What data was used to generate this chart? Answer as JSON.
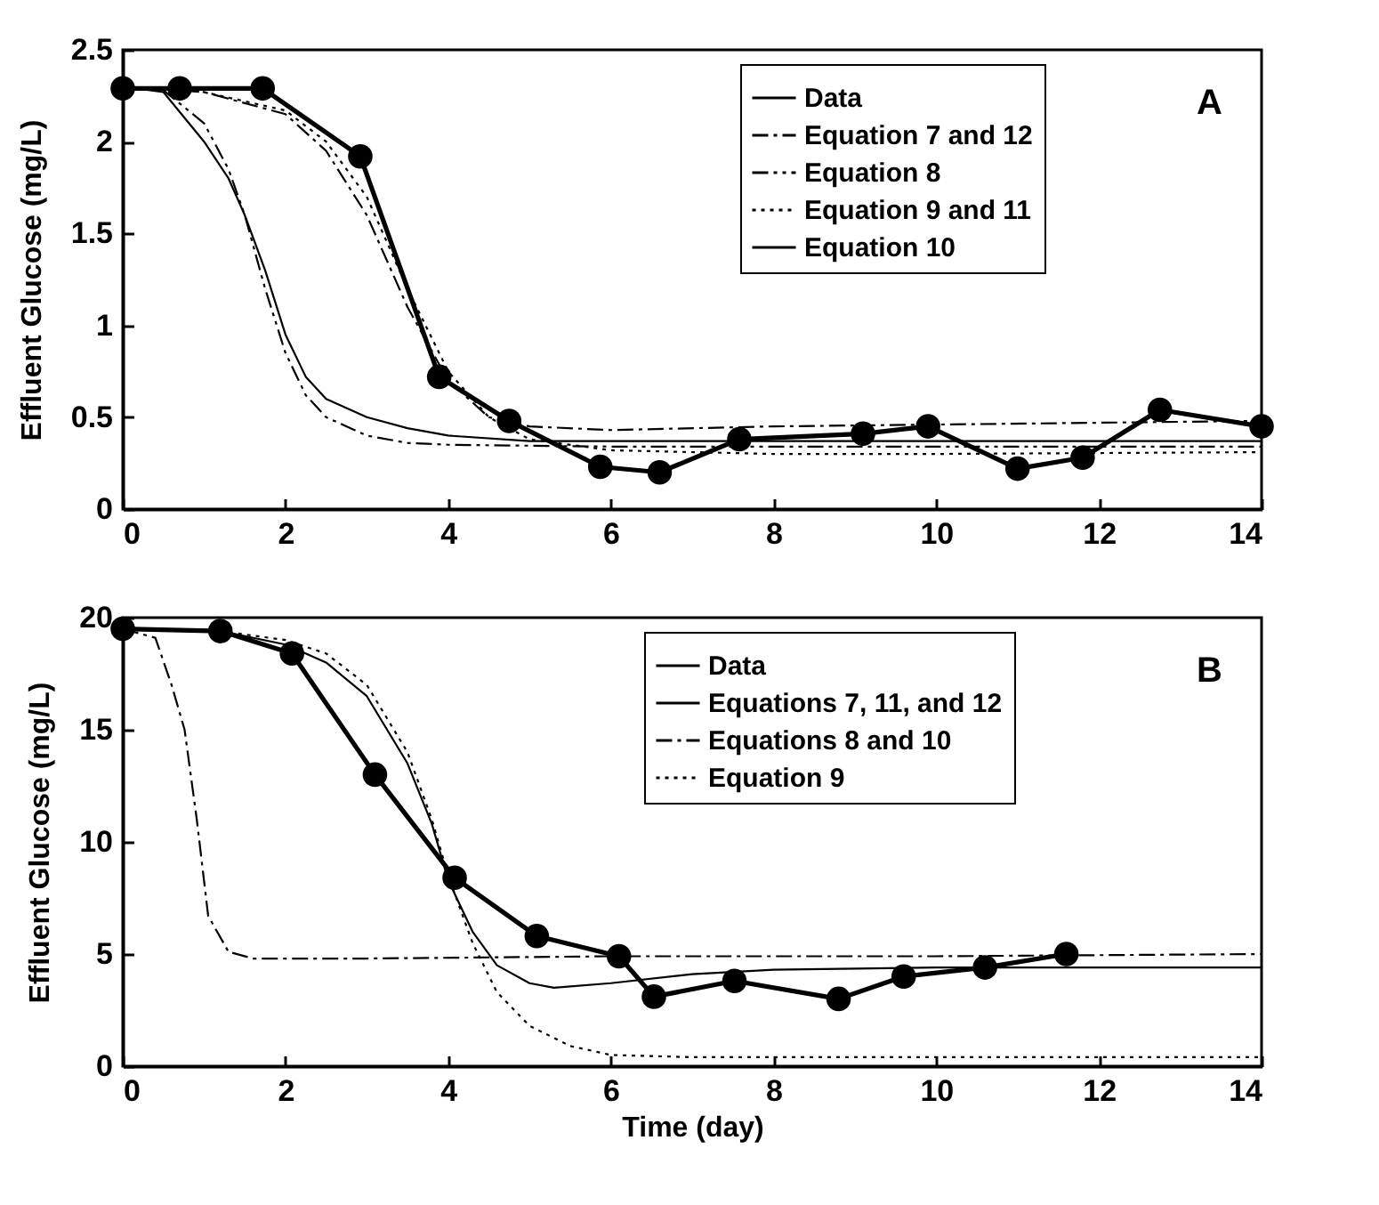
{
  "chart_data": [
    {
      "type": "line",
      "ylabel": "Effluent Glucose (mg/L)",
      "xlim": [
        0,
        14
      ],
      "xticks": [
        0,
        2,
        4,
        6,
        8,
        10,
        12,
        14
      ],
      "ylim": [
        0,
        2.5
      ],
      "yticks": [
        0,
        0.5,
        1,
        1.5,
        2,
        2.5
      ],
      "grid": false,
      "legend": "top right",
      "annotations": [
        "A"
      ],
      "series": [
        {
          "name": "Data",
          "color": "#000000",
          "marker": "circle",
          "line_style": "solid",
          "x": [
            0,
            0.7,
            1.72,
            2.92,
            3.89,
            4.75,
            5.87,
            6.6,
            7.58,
            9.1,
            9.9,
            11.0,
            11.8,
            12.75,
            14
          ],
          "values": [
            2.29,
            2.29,
            2.29,
            1.92,
            0.72,
            0.48,
            0.23,
            0.2,
            0.38,
            0.41,
            0.45,
            0.22,
            0.28,
            0.54,
            0.45
          ]
        },
        {
          "name": "Equation 7 and 12",
          "color": "#000000",
          "marker": "none",
          "line_style": "dashdot",
          "x": [
            0,
            1,
            2,
            2.5,
            3,
            3.5,
            4,
            4.5,
            5,
            6,
            8,
            10,
            12,
            14
          ],
          "values": [
            2.3,
            2.27,
            2.15,
            1.95,
            1.6,
            1.1,
            0.7,
            0.5,
            0.45,
            0.43,
            0.45,
            0.46,
            0.47,
            0.48
          ]
        },
        {
          "name": "Equation  8",
          "color": "#000000",
          "marker": "none",
          "line_style": "dashdotdot",
          "x": [
            0,
            0.5,
            1,
            1.3,
            1.5,
            1.75,
            2,
            2.25,
            2.5,
            3,
            3.5,
            4,
            6,
            14
          ],
          "values": [
            2.3,
            2.28,
            2.1,
            1.85,
            1.6,
            1.2,
            0.85,
            0.62,
            0.5,
            0.4,
            0.36,
            0.35,
            0.34,
            0.34
          ]
        },
        {
          "name": "Equation 9 and 11",
          "color": "#000000",
          "marker": "none",
          "line_style": "dotted",
          "x": [
            0,
            1,
            2,
            2.5,
            3,
            3.5,
            4,
            4.5,
            5,
            6,
            8,
            10,
            14
          ],
          "values": [
            2.3,
            2.27,
            2.17,
            2.0,
            1.7,
            1.2,
            0.75,
            0.5,
            0.38,
            0.32,
            0.3,
            0.3,
            0.31
          ]
        },
        {
          "name": "Equation 10",
          "color": "#000000",
          "marker": "none",
          "line_style": "solid",
          "x": [
            0,
            0.5,
            1,
            1.3,
            1.5,
            1.75,
            2,
            2.25,
            2.5,
            3,
            3.5,
            4,
            5,
            6,
            14
          ],
          "values": [
            2.3,
            2.27,
            2.0,
            1.8,
            1.6,
            1.3,
            0.95,
            0.72,
            0.6,
            0.5,
            0.44,
            0.4,
            0.37,
            0.37,
            0.37
          ]
        }
      ]
    },
    {
      "type": "line",
      "xlabel": "Time (day)",
      "ylabel": "Effluent Glucose (mg/L)",
      "xlim": [
        0,
        14
      ],
      "xticks": [
        0,
        2,
        4,
        6,
        8,
        10,
        12,
        14
      ],
      "ylim": [
        0,
        20
      ],
      "yticks": [
        0,
        5,
        10,
        15,
        20
      ],
      "grid": false,
      "legend": "top right",
      "annotations": [
        "B"
      ],
      "series": [
        {
          "name": "Data",
          "color": "#000000",
          "marker": "circle",
          "line_style": "solid",
          "x": [
            0,
            1.2,
            2.08,
            3.1,
            4.08,
            5.09,
            6.1,
            6.53,
            7.52,
            8.8,
            9.6,
            10.6,
            11.6
          ],
          "values": [
            19.5,
            19.4,
            18.4,
            13.0,
            8.4,
            5.8,
            4.9,
            3.1,
            3.8,
            3.0,
            4.0,
            4.4,
            5.0
          ]
        },
        {
          "name": "Equations 7, 11, and 12",
          "color": "#000000",
          "marker": "none",
          "line_style": "solid",
          "x": [
            0,
            1.2,
            2,
            2.5,
            3,
            3.5,
            3.8,
            4,
            4.3,
            4.6,
            5,
            5.3,
            6,
            7,
            8,
            10,
            14
          ],
          "values": [
            19.5,
            19.4,
            18.8,
            18,
            16.5,
            13.5,
            10.8,
            8.3,
            6,
            4.5,
            3.7,
            3.5,
            3.7,
            4.1,
            4.3,
            4.4,
            4.4
          ]
        },
        {
          "name": "Equations 8 and 10",
          "color": "#000000",
          "marker": "none",
          "line_style": "dashdot",
          "x": [
            0,
            0.4,
            0.6,
            0.76,
            0.91,
            1.05,
            1.3,
            1.6,
            3,
            6,
            10,
            14
          ],
          "values": [
            19.5,
            19.1,
            17,
            15,
            11,
            6.7,
            5.1,
            4.8,
            4.8,
            4.9,
            4.9,
            5.0
          ]
        },
        {
          "name": "Equation 9",
          "color": "#000000",
          "marker": "none",
          "line_style": "dotted",
          "x": [
            0,
            1.2,
            2,
            2.5,
            3,
            3.5,
            3.8,
            4,
            4.3,
            4.6,
            5,
            5.5,
            6,
            7,
            10,
            14
          ],
          "values": [
            19.5,
            19.4,
            19,
            18.4,
            17,
            14,
            11,
            8.5,
            5.5,
            3.3,
            1.8,
            0.9,
            0.5,
            0.4,
            0.4,
            0.4
          ]
        }
      ]
    }
  ]
}
